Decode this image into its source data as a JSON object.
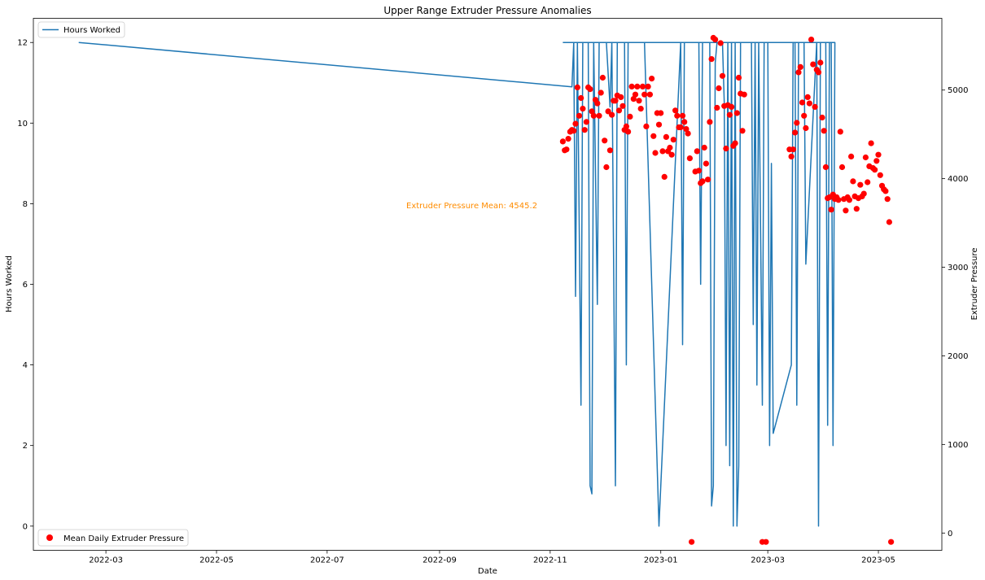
{
  "chart_data": {
    "type": "line",
    "title": "Upper Range Extruder Pressure Anomalies",
    "xlabel": "Date",
    "ylabel_left": "Hours Worked",
    "ylabel_right": "Extruder Pressure",
    "xlim": [
      "2022-01-20",
      "2023-06-05"
    ],
    "xticks": [
      "2022-03",
      "2022-05",
      "2022-07",
      "2022-09",
      "2022-11",
      "2023-01",
      "2023-03",
      "2023-05"
    ],
    "ylim_left": [
      -0.6,
      12.6
    ],
    "yticks_left": [
      0,
      2,
      4,
      6,
      8,
      10,
      12
    ],
    "ylim_right": [
      -195,
      5810
    ],
    "yticks_right": [
      0,
      1000,
      2000,
      3000,
      4000,
      5000
    ],
    "grid": false,
    "annotation": {
      "text": "Extruder Pressure Mean: 4545.2",
      "color": "#ff8c00"
    },
    "series": [
      {
        "name": "Hours Worked",
        "axis": "left",
        "kind": "line",
        "color": "#1f77b4",
        "legend_position": "upper-left",
        "points": [
          [
            "2022-02-14",
            12
          ],
          [
            "2022-11-13",
            10.9
          ],
          [
            "2022-11-14",
            12
          ],
          [
            "2022-11-15",
            5.7
          ],
          [
            "2022-11-16",
            12
          ],
          [
            "2022-11-18",
            3
          ],
          [
            "2022-11-19",
            12
          ],
          [
            "2022-11-22",
            12
          ],
          [
            "2022-11-23",
            1
          ],
          [
            "2022-11-24",
            0.8
          ],
          [
            "2022-11-25",
            12
          ],
          [
            "2022-11-27",
            5.5
          ],
          [
            "2022-11-28",
            12
          ],
          [
            "2022-12-02",
            12
          ],
          [
            "2022-12-04",
            10.4
          ],
          [
            "2022-12-05",
            12
          ],
          [
            "2022-12-07",
            1
          ],
          [
            "2022-12-08",
            12
          ],
          [
            "2022-12-12",
            12
          ],
          [
            "2022-12-13",
            4
          ],
          [
            "2022-12-14",
            12
          ],
          [
            "2022-12-23",
            12
          ],
          [
            "2022-12-31",
            0
          ],
          [
            "2023-01-12",
            12
          ],
          [
            "2023-01-13",
            4.5
          ],
          [
            "2023-01-14",
            12
          ],
          [
            "2023-01-22",
            12
          ],
          [
            "2023-01-23",
            6
          ],
          [
            "2023-01-24",
            12
          ],
          [
            "2023-01-28",
            12
          ],
          [
            "2023-01-29",
            0.5
          ],
          [
            "2023-01-30",
            1
          ],
          [
            "2023-01-31",
            11.5
          ],
          [
            "2023-02-01",
            12
          ],
          [
            "2023-02-04",
            12
          ],
          [
            "2023-02-05",
            10.5
          ],
          [
            "2023-02-06",
            2
          ],
          [
            "2023-02-07",
            12
          ],
          [
            "2023-02-08",
            1.5
          ],
          [
            "2023-02-09",
            12
          ],
          [
            "2023-02-10",
            0
          ],
          [
            "2023-02-11",
            12
          ],
          [
            "2023-02-12",
            0
          ],
          [
            "2023-02-13",
            1.5
          ],
          [
            "2023-02-14",
            12
          ],
          [
            "2023-02-20",
            12
          ],
          [
            "2023-02-21",
            5
          ],
          [
            "2023-02-22",
            12
          ],
          [
            "2023-02-23",
            3.5
          ],
          [
            "2023-02-24",
            12
          ],
          [
            "2023-02-26",
            3
          ],
          [
            "2023-02-27",
            12
          ],
          [
            "2023-03-01",
            12
          ],
          [
            "2023-03-02",
            2
          ],
          [
            "2023-03-03",
            9
          ],
          [
            "2023-03-04",
            2.3
          ],
          [
            "2023-03-14",
            4
          ],
          [
            "2023-03-15",
            12
          ],
          [
            "2023-03-16",
            12
          ],
          [
            "2023-03-17",
            3
          ],
          [
            "2023-03-18",
            12
          ],
          [
            "2023-03-21",
            12
          ],
          [
            "2023-03-22",
            6.5
          ],
          [
            "2023-03-28",
            12
          ],
          [
            "2023-03-29",
            0
          ],
          [
            "2023-03-30",
            12
          ],
          [
            "2023-04-02",
            12
          ],
          [
            "2023-04-03",
            2.5
          ],
          [
            "2023-04-04",
            12
          ],
          [
            "2023-04-05",
            12
          ],
          [
            "2023-04-06",
            2
          ],
          [
            "2023-04-07",
            12
          ],
          [
            "2022-11-08",
            12
          ]
        ]
      },
      {
        "name": "Mean Daily Extruder Pressure",
        "axis": "right",
        "kind": "scatter",
        "color": "#ff0000",
        "legend_position": "lower-left",
        "points": [
          [
            "2022-11-08",
            4420
          ],
          [
            "2022-11-09",
            4320
          ],
          [
            "2022-11-10",
            4330
          ],
          [
            "2022-11-11",
            4450
          ],
          [
            "2022-11-12",
            4530
          ],
          [
            "2022-11-13",
            4550
          ],
          [
            "2022-11-14",
            4540
          ],
          [
            "2022-11-15",
            4620
          ],
          [
            "2022-11-16",
            5030
          ],
          [
            "2022-11-17",
            4710
          ],
          [
            "2022-11-18",
            4910
          ],
          [
            "2022-11-19",
            4790
          ],
          [
            "2022-11-20",
            4550
          ],
          [
            "2022-11-21",
            4640
          ],
          [
            "2022-11-22",
            5030
          ],
          [
            "2022-11-23",
            5010
          ],
          [
            "2022-11-24",
            4760
          ],
          [
            "2022-11-25",
            4710
          ],
          [
            "2022-11-26",
            4890
          ],
          [
            "2022-11-27",
            4850
          ],
          [
            "2022-11-28",
            4710
          ],
          [
            "2022-11-29",
            4970
          ],
          [
            "2022-11-30",
            5140
          ],
          [
            "2022-12-01",
            4430
          ],
          [
            "2022-12-02",
            4130
          ],
          [
            "2022-12-03",
            4760
          ],
          [
            "2022-12-04",
            4320
          ],
          [
            "2022-12-05",
            4720
          ],
          [
            "2022-12-06",
            4880
          ],
          [
            "2022-12-07",
            4880
          ],
          [
            "2022-12-08",
            4940
          ],
          [
            "2022-12-09",
            4770
          ],
          [
            "2022-12-10",
            4920
          ],
          [
            "2022-12-11",
            4820
          ],
          [
            "2022-12-12",
            4550
          ],
          [
            "2022-12-13",
            4590
          ],
          [
            "2022-12-14",
            4530
          ],
          [
            "2022-12-15",
            4700
          ],
          [
            "2022-12-16",
            5040
          ],
          [
            "2022-12-17",
            4900
          ],
          [
            "2022-12-18",
            4950
          ],
          [
            "2022-12-19",
            5040
          ],
          [
            "2022-12-20",
            4880
          ],
          [
            "2022-12-21",
            4790
          ],
          [
            "2022-12-22",
            5040
          ],
          [
            "2022-12-23",
            4950
          ],
          [
            "2022-12-24",
            4590
          ],
          [
            "2022-12-25",
            5040
          ],
          [
            "2022-12-26",
            4950
          ],
          [
            "2022-12-27",
            5130
          ],
          [
            "2022-12-28",
            4480
          ],
          [
            "2022-12-29",
            4290
          ],
          [
            "2022-12-30",
            4740
          ],
          [
            "2022-12-31",
            4610
          ],
          [
            "2023-01-01",
            4740
          ],
          [
            "2023-01-02",
            4310
          ],
          [
            "2023-01-03",
            4020
          ],
          [
            "2023-01-04",
            4470
          ],
          [
            "2023-01-05",
            4310
          ],
          [
            "2023-01-06",
            4350
          ],
          [
            "2023-01-07",
            4270
          ],
          [
            "2023-01-08",
            4440
          ],
          [
            "2023-01-09",
            4770
          ],
          [
            "2023-01-10",
            4710
          ],
          [
            "2023-01-11",
            4580
          ],
          [
            "2023-01-12",
            4580
          ],
          [
            "2023-01-13",
            4710
          ],
          [
            "2023-01-14",
            4640
          ],
          [
            "2023-01-15",
            4560
          ],
          [
            "2023-01-16",
            4510
          ],
          [
            "2023-01-17",
            4230
          ],
          [
            "2023-01-18",
            -100
          ],
          [
            "2023-01-20",
            4080
          ],
          [
            "2023-01-21",
            4310
          ],
          [
            "2023-01-22",
            4090
          ],
          [
            "2023-01-23",
            3950
          ],
          [
            "2023-01-24",
            3970
          ],
          [
            "2023-01-25",
            4350
          ],
          [
            "2023-01-26",
            4170
          ],
          [
            "2023-01-27",
            3990
          ],
          [
            "2023-01-28",
            4640
          ],
          [
            "2023-01-29",
            5350
          ],
          [
            "2023-01-30",
            5590
          ],
          [
            "2023-01-31",
            5570
          ],
          [
            "2023-02-01",
            4800
          ],
          [
            "2023-02-02",
            5020
          ],
          [
            "2023-02-03",
            5530
          ],
          [
            "2023-02-04",
            5160
          ],
          [
            "2023-02-05",
            4820
          ],
          [
            "2023-02-06",
            4340
          ],
          [
            "2023-02-07",
            4830
          ],
          [
            "2023-02-08",
            4720
          ],
          [
            "2023-02-09",
            4810
          ],
          [
            "2023-02-10",
            4370
          ],
          [
            "2023-02-11",
            4400
          ],
          [
            "2023-02-12",
            4740
          ],
          [
            "2023-02-13",
            5140
          ],
          [
            "2023-02-14",
            4960
          ],
          [
            "2023-02-15",
            4540
          ],
          [
            "2023-02-16",
            4950
          ],
          [
            "2023-02-26",
            -100
          ],
          [
            "2023-02-28",
            -100
          ],
          [
            "2023-03-13",
            4330
          ],
          [
            "2023-03-14",
            4250
          ],
          [
            "2023-03-15",
            4330
          ],
          [
            "2023-03-16",
            4520
          ],
          [
            "2023-03-17",
            4630
          ],
          [
            "2023-03-18",
            5200
          ],
          [
            "2023-03-19",
            5260
          ],
          [
            "2023-03-20",
            4860
          ],
          [
            "2023-03-21",
            4710
          ],
          [
            "2023-03-22",
            4570
          ],
          [
            "2023-03-23",
            4920
          ],
          [
            "2023-03-24",
            4850
          ],
          [
            "2023-03-25",
            5570
          ],
          [
            "2023-03-26",
            5290
          ],
          [
            "2023-03-27",
            4810
          ],
          [
            "2023-03-28",
            5230
          ],
          [
            "2023-03-29",
            5200
          ],
          [
            "2023-03-30",
            5310
          ],
          [
            "2023-03-31",
            4690
          ],
          [
            "2023-04-01",
            4540
          ],
          [
            "2023-04-02",
            4130
          ],
          [
            "2023-04-03",
            3780
          ],
          [
            "2023-04-04",
            3790
          ],
          [
            "2023-04-05",
            3650
          ],
          [
            "2023-04-06",
            3820
          ],
          [
            "2023-04-07",
            3770
          ],
          [
            "2023-04-08",
            3790
          ],
          [
            "2023-04-09",
            3760
          ],
          [
            "2023-04-10",
            4530
          ],
          [
            "2023-04-11",
            4130
          ],
          [
            "2023-04-12",
            3770
          ],
          [
            "2023-04-13",
            3640
          ],
          [
            "2023-04-14",
            3790
          ],
          [
            "2023-04-15",
            3760
          ],
          [
            "2023-04-16",
            4250
          ],
          [
            "2023-04-17",
            3970
          ],
          [
            "2023-04-18",
            3800
          ],
          [
            "2023-04-19",
            3660
          ],
          [
            "2023-04-20",
            3780
          ],
          [
            "2023-04-21",
            3930
          ],
          [
            "2023-04-22",
            3800
          ],
          [
            "2023-04-23",
            3830
          ],
          [
            "2023-04-24",
            4240
          ],
          [
            "2023-04-25",
            3960
          ],
          [
            "2023-04-26",
            4140
          ],
          [
            "2023-04-27",
            4400
          ],
          [
            "2023-04-28",
            4120
          ],
          [
            "2023-04-29",
            4100
          ],
          [
            "2023-04-30",
            4200
          ],
          [
            "2023-05-01",
            4270
          ],
          [
            "2023-05-02",
            4040
          ],
          [
            "2023-05-03",
            3920
          ],
          [
            "2023-05-04",
            3880
          ],
          [
            "2023-05-05",
            3860
          ],
          [
            "2023-05-06",
            3770
          ],
          [
            "2023-05-07",
            3510
          ],
          [
            "2023-05-08",
            -100
          ]
        ]
      }
    ]
  }
}
